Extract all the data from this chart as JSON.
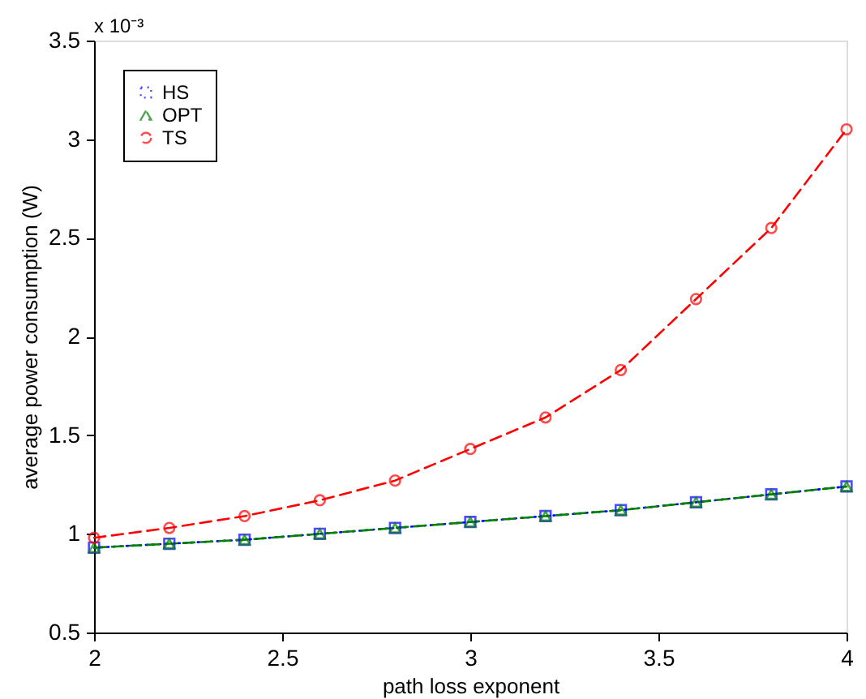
{
  "chart_data": {
    "type": "line",
    "xlabel": "path loss exponent",
    "ylabel": "average power consumption (W)",
    "annotations": [
      "x 10⁻³"
    ],
    "x": [
      2,
      2.2,
      2.4,
      2.6,
      2.8,
      3,
      3.2,
      3.4,
      3.6,
      3.8,
      4
    ],
    "series": [
      {
        "name": "HS",
        "color": "#0000ff",
        "marker": "square",
        "line_style": "dotted",
        "values": [
          0.93,
          0.95,
          0.97,
          1.0,
          1.03,
          1.06,
          1.09,
          1.12,
          1.16,
          1.2,
          1.24
        ]
      },
      {
        "name": "OPT",
        "color": "#008000",
        "marker": "triangle",
        "line_style": "dashed",
        "values": [
          0.93,
          0.95,
          0.97,
          1.0,
          1.03,
          1.06,
          1.09,
          1.12,
          1.16,
          1.2,
          1.24
        ]
      },
      {
        "name": "TS",
        "color": "#ff0000",
        "marker": "circle",
        "line_style": "dashed",
        "values": [
          0.98,
          1.03,
          1.09,
          1.17,
          1.27,
          1.43,
          1.59,
          1.83,
          2.19,
          2.55,
          3.05
        ]
      }
    ],
    "xlim": [
      2,
      4
    ],
    "xticks": [
      2,
      2.5,
      3,
      3.5,
      4
    ],
    "ylim": [
      0.5,
      3.5
    ],
    "yticks": [
      0.5,
      1,
      1.5,
      2,
      2.5,
      3,
      3.5
    ],
    "grid": false,
    "legend": "top left"
  }
}
